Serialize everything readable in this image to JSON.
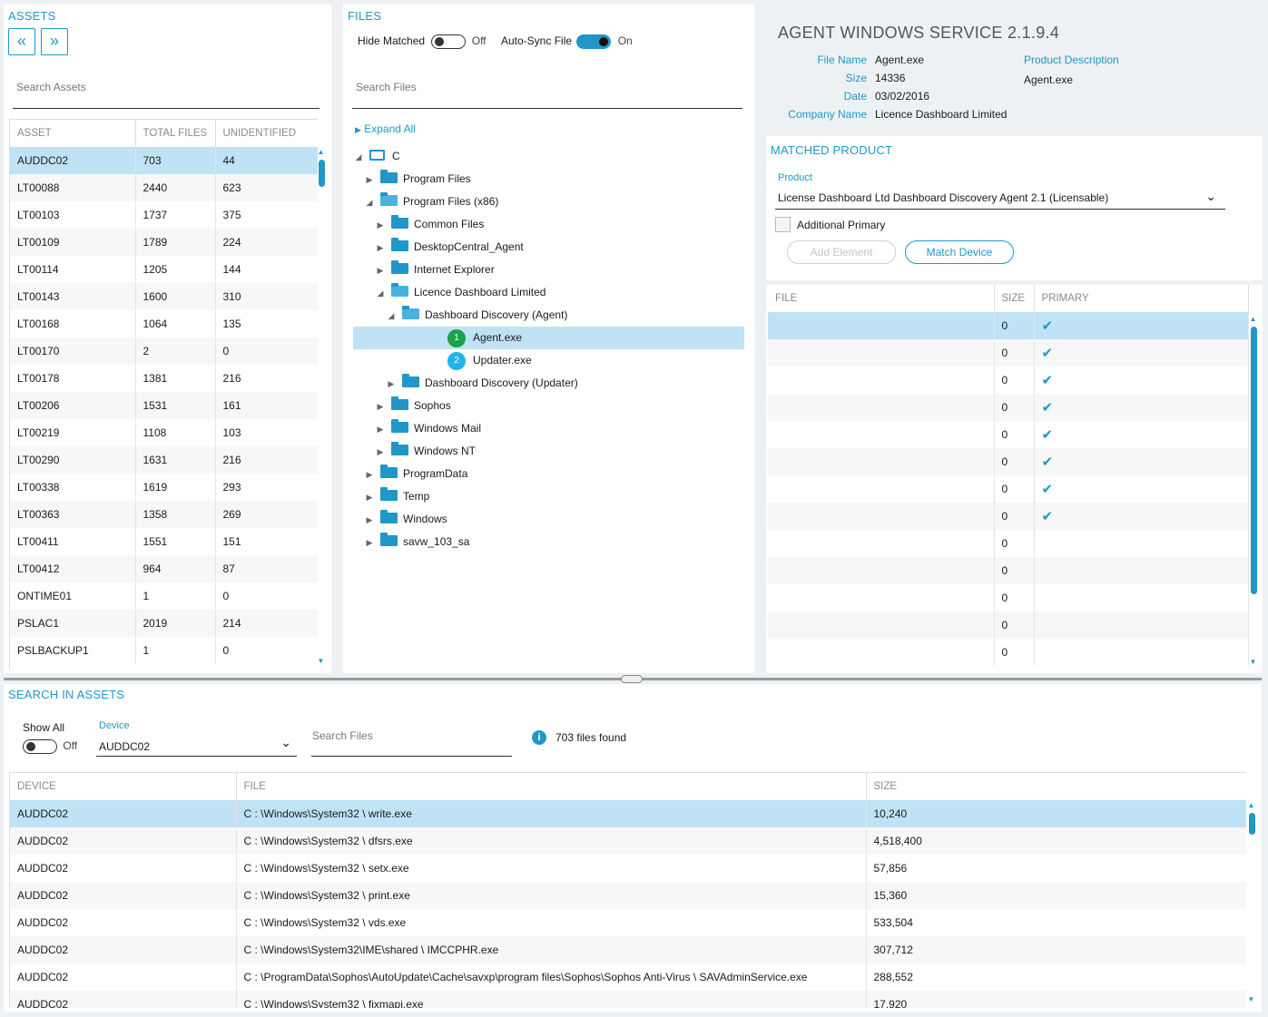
{
  "assets": {
    "title": "ASSETS",
    "nav_prev": "«",
    "nav_next": "»",
    "search_placeholder": "Search Assets",
    "columns": [
      "ASSET",
      "TOTAL FILES",
      "UNIDENTIFIED"
    ],
    "rows": [
      [
        "AUDDC02",
        "703",
        "44"
      ],
      [
        "LT00088",
        "2440",
        "623"
      ],
      [
        "LT00103",
        "1737",
        "375"
      ],
      [
        "LT00109",
        "1789",
        "224"
      ],
      [
        "LT00114",
        "1205",
        "144"
      ],
      [
        "LT00143",
        "1600",
        "310"
      ],
      [
        "LT00168",
        "1064",
        "135"
      ],
      [
        "LT00170",
        "2",
        "0"
      ],
      [
        "LT00178",
        "1381",
        "216"
      ],
      [
        "LT00206",
        "1531",
        "161"
      ],
      [
        "LT00219",
        "1108",
        "103"
      ],
      [
        "LT00290",
        "1631",
        "216"
      ],
      [
        "LT00338",
        "1619",
        "293"
      ],
      [
        "LT00363",
        "1358",
        "269"
      ],
      [
        "LT00411",
        "1551",
        "151"
      ],
      [
        "LT00412",
        "964",
        "87"
      ],
      [
        "ONTIME01",
        "1",
        "0"
      ],
      [
        "PSLAC1",
        "2019",
        "214"
      ],
      [
        "PSLBACKUP1",
        "1",
        "0"
      ]
    ]
  },
  "files": {
    "title": "FILES",
    "hide_matched_label": "Hide Matched",
    "hide_matched_state": "Off",
    "autosync_label": "Auto-Sync File",
    "autosync_state": "On",
    "search_placeholder": "Search Files",
    "expand_all": "Expand All",
    "tree": [
      {
        "label": "C",
        "depth": 0,
        "type": "computer",
        "expanded": true
      },
      {
        "label": "Program Files",
        "depth": 1,
        "type": "folder",
        "expanded": false
      },
      {
        "label": "Program Files (x86)",
        "depth": 1,
        "type": "folder",
        "expanded": true
      },
      {
        "label": "Common Files",
        "depth": 2,
        "type": "folder",
        "expanded": false
      },
      {
        "label": "DesktopCentral_Agent",
        "depth": 2,
        "type": "folder",
        "expanded": false
      },
      {
        "label": "Internet Explorer",
        "depth": 2,
        "type": "folder",
        "expanded": false
      },
      {
        "label": "Licence Dashboard Limited",
        "depth": 2,
        "type": "folder",
        "expanded": true
      },
      {
        "label": "Dashboard Discovery (Agent)",
        "depth": 3,
        "type": "folder",
        "expanded": true
      },
      {
        "label": "Agent.exe",
        "depth": 4,
        "type": "file",
        "badge": "1",
        "badge_color": "#1aa34a",
        "selected": true
      },
      {
        "label": "Updater.exe",
        "depth": 4,
        "type": "file",
        "badge": "2",
        "badge_color": "#1fb6ea"
      },
      {
        "label": "Dashboard Discovery (Updater)",
        "depth": 3,
        "type": "folder",
        "expanded": false
      },
      {
        "label": "Sophos",
        "depth": 2,
        "type": "folder",
        "expanded": false
      },
      {
        "label": "Windows Mail",
        "depth": 2,
        "type": "folder",
        "expanded": false
      },
      {
        "label": "Windows NT",
        "depth": 2,
        "type": "folder",
        "expanded": false
      },
      {
        "label": "ProgramData",
        "depth": 1,
        "type": "folder",
        "expanded": false
      },
      {
        "label": "Temp",
        "depth": 1,
        "type": "folder",
        "expanded": false
      },
      {
        "label": "Windows",
        "depth": 1,
        "type": "folder",
        "expanded": false
      },
      {
        "label": "savw_103_sa",
        "depth": 1,
        "type": "folder",
        "expanded": false
      }
    ]
  },
  "details": {
    "title": "AGENT WINDOWS SERVICE 2.1.9.4",
    "fields": [
      {
        "label": "File Name",
        "value": "Agent.exe"
      },
      {
        "label": "Size",
        "value": "14336"
      },
      {
        "label": "Date",
        "value": "03/02/2016"
      },
      {
        "label": "Company Name",
        "value": "Licence Dashboard Limited"
      }
    ],
    "product_description_label": "Product Description",
    "product_description_value": "Agent.exe"
  },
  "matched": {
    "title": "MATCHED PRODUCT",
    "product_label": "Product",
    "product_value": "License Dashboard Ltd Dashboard Discovery Agent 2.1 (Licensable)",
    "additional_primary": "Additional Primary",
    "add_element": "Add Element",
    "match_device": "Match Device",
    "columns": [
      "FILE",
      "SIZE",
      "PRIMARY"
    ],
    "rows": [
      {
        "size": "0",
        "primary": true
      },
      {
        "size": "0",
        "primary": true
      },
      {
        "size": "0",
        "primary": true
      },
      {
        "size": "0",
        "primary": true
      },
      {
        "size": "0",
        "primary": true
      },
      {
        "size": "0",
        "primary": true
      },
      {
        "size": "0",
        "primary": true
      },
      {
        "size": "0",
        "primary": true
      },
      {
        "size": "0",
        "primary": false
      },
      {
        "size": "0",
        "primary": false
      },
      {
        "size": "0",
        "primary": false
      },
      {
        "size": "0",
        "primary": false
      },
      {
        "size": "0",
        "primary": false
      }
    ]
  },
  "search_assets": {
    "title": "SEARCH IN ASSETS",
    "show_all_label": "Show All",
    "show_all_state": "Off",
    "device_label": "Device",
    "device_value": "AUDDC02",
    "search_placeholder": "Search Files",
    "files_found": "703 files found",
    "columns": [
      "DEVICE",
      "FILE",
      "SIZE"
    ],
    "rows": [
      [
        "AUDDC02",
        "C : \\Windows\\System32 \\ write.exe",
        "10,240"
      ],
      [
        "AUDDC02",
        "C : \\Windows\\System32 \\ dfsrs.exe",
        "4,518,400"
      ],
      [
        "AUDDC02",
        "C : \\Windows\\System32 \\ setx.exe",
        "57,856"
      ],
      [
        "AUDDC02",
        "C : \\Windows\\System32 \\ print.exe",
        "15,360"
      ],
      [
        "AUDDC02",
        "C : \\Windows\\System32 \\ vds.exe",
        "533,504"
      ],
      [
        "AUDDC02",
        "C : \\Windows\\System32\\IME\\shared \\ IMCCPHR.exe",
        "307,712"
      ],
      [
        "AUDDC02",
        "C : \\ProgramData\\Sophos\\AutoUpdate\\Cache\\savxp\\program files\\Sophos\\Sophos Anti-Virus \\ SAVAdminService.exe",
        "288,552"
      ],
      [
        "AUDDC02",
        "C : \\Windows\\System32 \\ fixmapi.exe",
        "17,920"
      ]
    ]
  }
}
